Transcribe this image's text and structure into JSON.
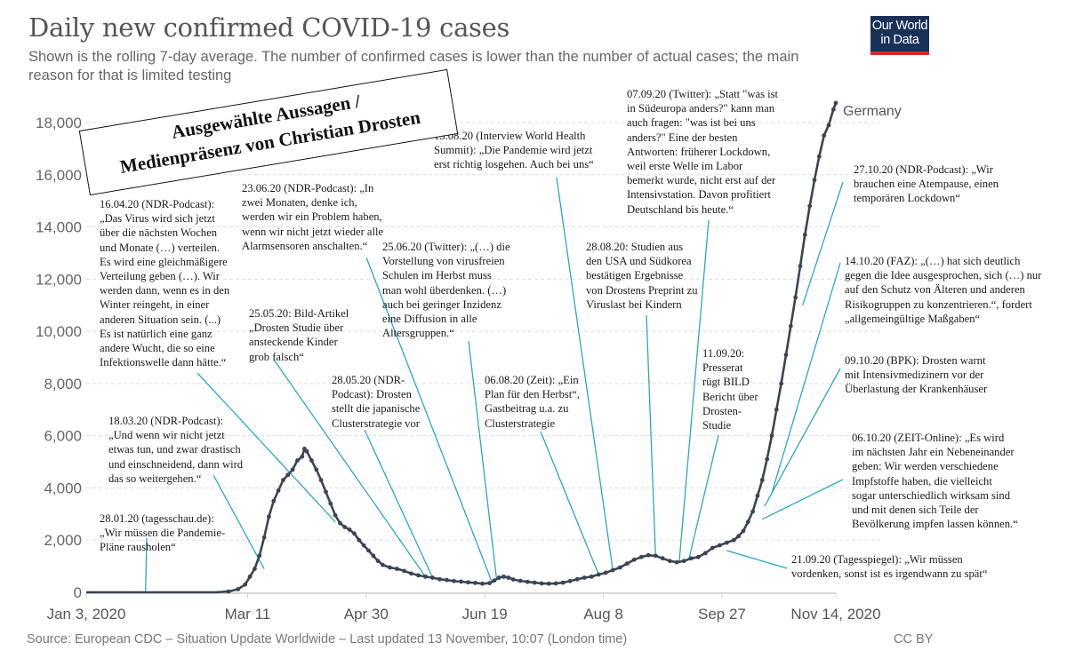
{
  "header": {
    "title": "Daily new confirmed COVID-19 cases",
    "subtitle": "Shown is the rolling 7-day average. The number of confirmed cases is lower than the number of actual cases; the main reason for that is limited testing",
    "logo_line1": "Our World",
    "logo_line2": "in Data"
  },
  "stamp": {
    "line1": "Ausgewählte Aussagen /",
    "line2": "Medienpräsenz von Christian Drosten"
  },
  "footer": {
    "source": "Source: European CDC – Situation Update Worldwide – Last updated 13 November, 10:07 (London time)",
    "license": "CC BY"
  },
  "colors": {
    "series": "#3b4454",
    "leader": "#2aa7c4",
    "grid": "#dddddd",
    "axis": "#cccccc"
  },
  "chart_data": {
    "type": "line",
    "title": "Daily new confirmed COVID-19 cases",
    "subtitle": "Shown is the rolling 7-day average",
    "xlabel": "",
    "ylabel": "",
    "x_start": "2020-01-03",
    "x_end": "2020-11-14",
    "xlim_days": [
      0,
      316
    ],
    "ylim": [
      0,
      18000
    ],
    "grid": true,
    "y_ticks": [
      0,
      2000,
      4000,
      6000,
      8000,
      10000,
      12000,
      14000,
      16000,
      18000
    ],
    "y_tick_labels": [
      "0",
      "2,000",
      "4,000",
      "6,000",
      "8,000",
      "10,000",
      "12,000",
      "14,000",
      "16,000",
      "18,000"
    ],
    "x_ticks": [
      {
        "day": 0,
        "label": "Jan 3, 2020"
      },
      {
        "day": 68,
        "label": "Mar 11"
      },
      {
        "day": 118,
        "label": "Apr 30"
      },
      {
        "day": 168,
        "label": "Jun 19"
      },
      {
        "day": 218,
        "label": "Aug 8"
      },
      {
        "day": 268,
        "label": "Sep 27"
      },
      {
        "day": 316,
        "label": "Nov 14, 2020"
      }
    ],
    "series": [
      {
        "name": "Germany",
        "points": [
          [
            0,
            0
          ],
          [
            20,
            0
          ],
          [
            40,
            0
          ],
          [
            55,
            5
          ],
          [
            60,
            30
          ],
          [
            64,
            120
          ],
          [
            67,
            300
          ],
          [
            69,
            600
          ],
          [
            71,
            900
          ],
          [
            73,
            1400
          ],
          [
            75,
            2100
          ],
          [
            77,
            2900
          ],
          [
            79,
            3500
          ],
          [
            81,
            3900
          ],
          [
            83,
            4300
          ],
          [
            85,
            4500
          ],
          [
            87,
            4700
          ],
          [
            89,
            5050
          ],
          [
            91,
            5200
          ],
          [
            92,
            5500
          ],
          [
            93,
            5400
          ],
          [
            95,
            5050
          ],
          [
            97,
            4700
          ],
          [
            99,
            4300
          ],
          [
            101,
            3850
          ],
          [
            103,
            3400
          ],
          [
            105,
            2950
          ],
          [
            107,
            2650
          ],
          [
            109,
            2500
          ],
          [
            111,
            2400
          ],
          [
            113,
            2250
          ],
          [
            115,
            2000
          ],
          [
            117,
            1800
          ],
          [
            119,
            1600
          ],
          [
            121,
            1400
          ],
          [
            123,
            1200
          ],
          [
            125,
            1050
          ],
          [
            128,
            950
          ],
          [
            131,
            900
          ],
          [
            134,
            820
          ],
          [
            137,
            720
          ],
          [
            140,
            650
          ],
          [
            143,
            600
          ],
          [
            146,
            560
          ],
          [
            149,
            500
          ],
          [
            152,
            470
          ],
          [
            155,
            430
          ],
          [
            158,
            410
          ],
          [
            161,
            380
          ],
          [
            164,
            360
          ],
          [
            167,
            330
          ],
          [
            170,
            350
          ],
          [
            172,
            450
          ],
          [
            174,
            560
          ],
          [
            176,
            600
          ],
          [
            178,
            560
          ],
          [
            180,
            490
          ],
          [
            183,
            440
          ],
          [
            186,
            400
          ],
          [
            189,
            370
          ],
          [
            192,
            340
          ],
          [
            195,
            330
          ],
          [
            198,
            340
          ],
          [
            201,
            370
          ],
          [
            204,
            430
          ],
          [
            207,
            500
          ],
          [
            210,
            560
          ],
          [
            213,
            600
          ],
          [
            216,
            680
          ],
          [
            219,
            750
          ],
          [
            222,
            850
          ],
          [
            225,
            950
          ],
          [
            228,
            1100
          ],
          [
            231,
            1250
          ],
          [
            234,
            1350
          ],
          [
            237,
            1420
          ],
          [
            240,
            1400
          ],
          [
            243,
            1300
          ],
          [
            246,
            1200
          ],
          [
            249,
            1150
          ],
          [
            252,
            1200
          ],
          [
            255,
            1300
          ],
          [
            258,
            1350
          ],
          [
            261,
            1500
          ],
          [
            264,
            1700
          ],
          [
            267,
            1800
          ],
          [
            270,
            1900
          ],
          [
            273,
            2000
          ],
          [
            275,
            2150
          ],
          [
            277,
            2350
          ],
          [
            279,
            2700
          ],
          [
            281,
            3100
          ],
          [
            283,
            3700
          ],
          [
            285,
            4300
          ],
          [
            287,
            5100
          ],
          [
            289,
            6000
          ],
          [
            291,
            7000
          ],
          [
            293,
            8000
          ],
          [
            295,
            9100
          ],
          [
            297,
            10200
          ],
          [
            299,
            11300
          ],
          [
            301,
            12500
          ],
          [
            303,
            13700
          ],
          [
            305,
            14800
          ],
          [
            307,
            15800
          ],
          [
            309,
            16700
          ],
          [
            311,
            17500
          ],
          [
            313,
            17900
          ],
          [
            315,
            18500
          ],
          [
            316,
            18750
          ]
        ]
      }
    ],
    "annotations": [
      {
        "id": "a0128",
        "date": "28.01.20",
        "text": [
          "28.01.20 (tagesschau.de):",
          "„Wir müssen die Pandemie-",
          "Pläne rausholen“"
        ],
        "target_day": 25,
        "target_value": 0
      },
      {
        "id": "a0318",
        "date": "18.03.20",
        "text": [
          "18.03.20 (NDR-Podcast):",
          "„Und wenn wir nicht jetzt",
          "etwas tun, und zwar drastisch",
          "und einschneidend, dann wird",
          "das so weitergehen.“"
        ],
        "target_day": 75,
        "target_value": 900
      },
      {
        "id": "a0416",
        "date": "16.04.20",
        "text": [
          "16.04.20 (NDR-Podcast):",
          "„Das Virus wird sich jetzt",
          "über die nächsten Wochen",
          "und Monate (…) verteilen.",
          "Es wird eine gleichmäßigere",
          "Verteilung geben (…). Wir",
          "werden dann, wenn es in den",
          "Winter reingeht, in einer",
          "anderen Situation sein. (...)",
          "Es ist natürlich eine ganz",
          "andere Wucht, die so eine",
          "Infektionswelle dann hätte.“"
        ],
        "target_day": 105,
        "target_value": 2700
      },
      {
        "id": "a0525",
        "date": "25.05.20",
        "text": [
          "25.05.20: Bild-Artikel",
          "„Drosten Studie über",
          "ansteckende Kinder",
          "grob falsch“"
        ],
        "target_day": 143,
        "target_value": 600
      },
      {
        "id": "a0528",
        "date": "28.05.20",
        "text": [
          "28.05.20 (NDR-",
          "Podcast): Drosten",
          "stellt die japanische",
          "Clusterstrategie vor"
        ],
        "target_day": 146,
        "target_value": 560
      },
      {
        "id": "a0623",
        "date": "23.06.20",
        "text": [
          "23.06.20 (NDR-Podcast): „In",
          "zwei Monaten, denke ich,",
          "werden wir ein Problem haben,",
          "wenn wir nicht jetzt wieder alle",
          "Alarmsensoren anschalten.“"
        ],
        "target_day": 171,
        "target_value": 400
      },
      {
        "id": "a0625",
        "date": "25.06.20",
        "text": [
          "25.06.20 (Twitter): „(…) die",
          "Vorstellung von virusfreien",
          "Schulen im Herbst muss",
          "man wohl überdenken. (…)",
          "auch bei geringer Inzidenz",
          "eine Diffusion in alle",
          "Altersgruppen.“"
        ],
        "target_day": 173,
        "target_value": 500
      },
      {
        "id": "a0806",
        "date": "06.08.20",
        "text": [
          "06.08.20 (Zeit): „Ein",
          "Plan für den Herbst“,",
          "Gastbeitrag u.a. zu",
          "Clusterstrategie"
        ],
        "target_day": 216,
        "target_value": 680
      },
      {
        "id": "a0813",
        "date": "13.08.20",
        "text": [
          "13.08.20 (Interview World Health",
          "Summit): „Die Pandemie wird jetzt",
          "erst richtig losgehen. Auch bei uns“"
        ],
        "target_day": 222,
        "target_value": 850
      },
      {
        "id": "a0828",
        "date": "28.08.20",
        "text": [
          "28.08.20: Studien aus",
          "den USA und Südkorea",
          "bestätigen Ergebnisse",
          "von Drostens Preprint zu",
          "Viruslast bei Kindern"
        ],
        "target_day": 240,
        "target_value": 1400
      },
      {
        "id": "a0907",
        "date": "07.09.20",
        "text": [
          "07.09.20 (Twitter): „Statt \"was ist",
          "in Südeuropa anders?\" kann man",
          "auch fragen: \"was ist bei uns",
          "anders?\" Eine der besten",
          "Antworten: früherer Lockdown,",
          "weil erste Welle im Labor",
          "bemerkt wurde, nicht erst auf der",
          "Intensivstation. Davon profitiert",
          "Deutschland bis heute.“"
        ],
        "target_day": 250,
        "target_value": 1180
      },
      {
        "id": "a0911",
        "date": "11.09.20",
        "text": [
          "11.09.20:",
          "Presserat",
          "rügt BILD",
          "Bericht über",
          "Drosten-",
          "Studie"
        ],
        "target_day": 254,
        "target_value": 1250
      },
      {
        "id": "a0921",
        "date": "21.09.20",
        "text": [
          "21.09.20 (Tagesspiegel): „Wir müssen",
          "vordenken, sonst ist es irgendwann zu spät“"
        ],
        "target_day": 270,
        "target_value": 1600
      },
      {
        "id": "a1006",
        "date": "06.10.20",
        "text": [
          "06.10.20 (ZEIT-Online): „Es wird",
          "im nächsten Jahr ein Nebeneinander",
          "geben: Wir werden verschiedene",
          "Impfstoffe haben, die vielleicht",
          "sogar unterschiedlich wirksam sind",
          "und mit denen sich Teile der",
          "Bevölkerung impfen lassen können.“"
        ],
        "target_day": 285,
        "target_value": 2800
      },
      {
        "id": "a1009",
        "date": "09.10.20",
        "text": [
          "09.10.20 (BPK): Drosten warnt",
          "mit Intensivmedizinern vor der",
          "Überlastung der Krankenhäuser"
        ],
        "target_day": 286,
        "target_value": 3300
      },
      {
        "id": "a1014",
        "date": "14.10.20",
        "text": [
          "14.10.20 (FAZ): „(…) hat sich deutlich",
          "gegen die Idee ausgesprochen, sich (…) nur",
          "auf den Schutz von Älteren und anderen",
          "Risikogruppen zu konzentrieren.“, fordert",
          "„allgemeingültige Maßgaben“"
        ],
        "target_day": 289,
        "target_value": 3800
      },
      {
        "id": "a1027",
        "date": "27.10.20",
        "text": [
          "27.10.20 (NDR-Podcast): „Wir",
          "brauchen eine Atempause, einen",
          "temporären Lockdown“"
        ],
        "target_day": 302,
        "target_value": 11000
      }
    ]
  }
}
